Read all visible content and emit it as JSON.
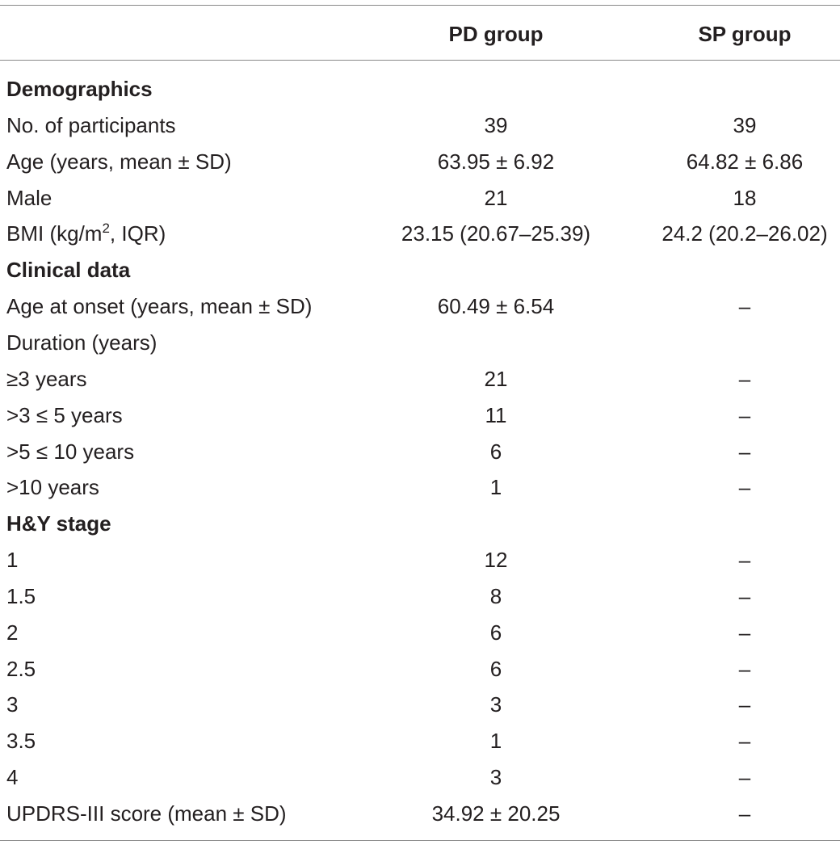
{
  "table": {
    "header": [
      "PD group",
      "SP group"
    ],
    "rows": [
      {
        "section": "Demographics"
      },
      {
        "label": "No. of participants",
        "pd": "39",
        "sp": "39"
      },
      {
        "label": "Age (years, mean ± SD)",
        "pd": "63.95 ± 6.92",
        "sp": "64.82 ± 6.86"
      },
      {
        "label": "Male",
        "pd": "21",
        "sp": "18"
      },
      {
        "label": "BMI (kg/m",
        "label_sup": "2",
        "label_rest": ", IQR)",
        "pd": "23.15 (20.67–25.39)",
        "sp": "24.2 (20.2–26.02)"
      },
      {
        "section": "Clinical data"
      },
      {
        "label": "Age at onset (years, mean ± SD)",
        "pd": "60.49 ± 6.54",
        "sp": "–"
      },
      {
        "label": "Duration (years)"
      },
      {
        "label": "≥3 years",
        "pd": "21",
        "sp": "–"
      },
      {
        "label": ">3 ≤ 5 years",
        "pd": "11",
        "sp": "–"
      },
      {
        "label": ">5 ≤ 10 years",
        "pd": "6",
        "sp": "–"
      },
      {
        "label": ">10 years",
        "pd": "1",
        "sp": "–"
      },
      {
        "section": "H&Y stage"
      },
      {
        "label": "1",
        "pd": "12",
        "sp": "–"
      },
      {
        "label": "1.5",
        "pd": "8",
        "sp": "–"
      },
      {
        "label": "2",
        "pd": "6",
        "sp": "–"
      },
      {
        "label": "2.5",
        "pd": "6",
        "sp": "–"
      },
      {
        "label": "3",
        "pd": "3",
        "sp": "–"
      },
      {
        "label": "3.5",
        "pd": "1",
        "sp": "–"
      },
      {
        "label": "4",
        "pd": "3",
        "sp": "–"
      },
      {
        "label": "UPDRS-III score (mean ± SD)",
        "pd": "34.92 ± 20.25",
        "sp": "–"
      }
    ]
  }
}
